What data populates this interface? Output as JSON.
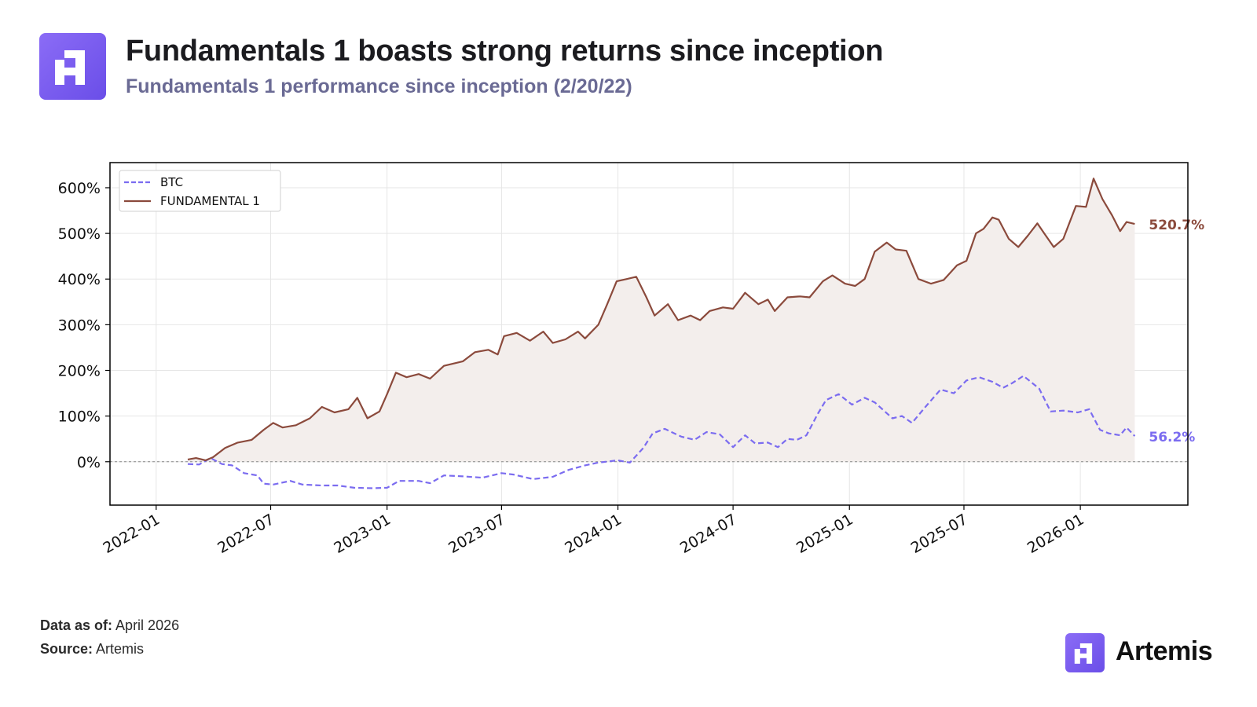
{
  "header": {
    "title": "Fundamentals 1 boasts strong returns since inception",
    "subtitle": "Fundamentals 1 performance since inception (2/20/22)"
  },
  "footer": {
    "data_as_of_label": "Data as of:",
    "data_as_of_value": "April 2026",
    "source_label": "Source:",
    "source_value": "Artemis",
    "brand": "Artemis"
  },
  "chart_data": {
    "type": "line",
    "title": "",
    "xlabel": "",
    "ylabel": "",
    "x_range": [
      "2021-10-20",
      "2026-06-20"
    ],
    "ylim": [
      -95,
      655
    ],
    "y_ticks": [
      0,
      100,
      200,
      300,
      400,
      500,
      600
    ],
    "y_tick_labels": [
      "0%",
      "100%",
      "200%",
      "300%",
      "400%",
      "500%",
      "600%"
    ],
    "x_ticks": [
      "2022-01-01",
      "2022-07-01",
      "2023-01-01",
      "2023-07-01",
      "2024-01-01",
      "2024-07-01",
      "2025-01-01",
      "2025-07-01",
      "2026-01-01"
    ],
    "x_tick_labels": [
      "2022-01",
      "2022-07",
      "2023-01",
      "2023-07",
      "2024-01",
      "2024-07",
      "2025-01",
      "2025-07",
      "2026-01"
    ],
    "grid": true,
    "legend_position": "top-left",
    "zero_line": true,
    "series": [
      {
        "name": "BTC",
        "color": "#7b6cf0",
        "style": "dashed",
        "end_label": "56.2%",
        "points": [
          [
            "2022-02-20",
            -5
          ],
          [
            "2022-03-10",
            -6
          ],
          [
            "2022-03-28",
            8
          ],
          [
            "2022-04-15",
            -5
          ],
          [
            "2022-05-01",
            -8
          ],
          [
            "2022-05-20",
            -25
          ],
          [
            "2022-06-10",
            -30
          ],
          [
            "2022-06-20",
            -48
          ],
          [
            "2022-07-05",
            -50
          ],
          [
            "2022-08-01",
            -42
          ],
          [
            "2022-08-20",
            -50
          ],
          [
            "2022-09-20",
            -52
          ],
          [
            "2022-10-15",
            -52
          ],
          [
            "2022-11-10",
            -57
          ],
          [
            "2022-12-10",
            -58
          ],
          [
            "2023-01-01",
            -57
          ],
          [
            "2023-01-20",
            -42
          ],
          [
            "2023-02-20",
            -42
          ],
          [
            "2023-03-10",
            -47
          ],
          [
            "2023-04-01",
            -30
          ],
          [
            "2023-05-01",
            -32
          ],
          [
            "2023-06-01",
            -35
          ],
          [
            "2023-07-01",
            -25
          ],
          [
            "2023-07-20",
            -28
          ],
          [
            "2023-08-20",
            -38
          ],
          [
            "2023-09-20",
            -33
          ],
          [
            "2023-10-15",
            -18
          ],
          [
            "2023-11-10",
            -8
          ],
          [
            "2023-12-01",
            -2
          ],
          [
            "2024-01-01",
            3
          ],
          [
            "2024-01-20",
            -2
          ],
          [
            "2024-02-10",
            30
          ],
          [
            "2024-02-25",
            62
          ],
          [
            "2024-03-15",
            72
          ],
          [
            "2024-04-10",
            55
          ],
          [
            "2024-05-01",
            48
          ],
          [
            "2024-05-20",
            65
          ],
          [
            "2024-06-10",
            60
          ],
          [
            "2024-07-01",
            32
          ],
          [
            "2024-07-20",
            58
          ],
          [
            "2024-08-05",
            40
          ],
          [
            "2024-08-25",
            42
          ],
          [
            "2024-09-10",
            32
          ],
          [
            "2024-09-25",
            50
          ],
          [
            "2024-10-10",
            48
          ],
          [
            "2024-10-25",
            58
          ],
          [
            "2024-11-12",
            105
          ],
          [
            "2024-11-25",
            135
          ],
          [
            "2024-12-15",
            148
          ],
          [
            "2025-01-05",
            125
          ],
          [
            "2025-01-25",
            140
          ],
          [
            "2025-02-10",
            130
          ],
          [
            "2025-03-10",
            95
          ],
          [
            "2025-03-25",
            100
          ],
          [
            "2025-04-10",
            85
          ],
          [
            "2025-05-01",
            120
          ],
          [
            "2025-05-25",
            158
          ],
          [
            "2025-06-15",
            150
          ],
          [
            "2025-07-05",
            178
          ],
          [
            "2025-07-25",
            185
          ],
          [
            "2025-08-15",
            175
          ],
          [
            "2025-09-01",
            162
          ],
          [
            "2025-09-15",
            172
          ],
          [
            "2025-10-03",
            188
          ],
          [
            "2025-10-12",
            178
          ],
          [
            "2025-10-28",
            160
          ],
          [
            "2025-11-15",
            110
          ],
          [
            "2025-12-05",
            112
          ],
          [
            "2025-12-28",
            108
          ],
          [
            "2026-01-15",
            115
          ],
          [
            "2026-02-01",
            70
          ],
          [
            "2026-02-15",
            62
          ],
          [
            "2026-03-05",
            58
          ],
          [
            "2026-03-15",
            75
          ],
          [
            "2026-03-28",
            56.2
          ]
        ]
      },
      {
        "name": "FUNDAMENTAL 1",
        "color": "#8b4a3c",
        "style": "solid",
        "fill": "#f3eeec",
        "end_label": "520.7%",
        "points": [
          [
            "2022-02-20",
            5
          ],
          [
            "2022-03-05",
            8
          ],
          [
            "2022-03-20",
            3
          ],
          [
            "2022-04-01",
            10
          ],
          [
            "2022-04-20",
            30
          ],
          [
            "2022-05-10",
            42
          ],
          [
            "2022-06-01",
            48
          ],
          [
            "2022-06-20",
            70
          ],
          [
            "2022-07-05",
            85
          ],
          [
            "2022-07-20",
            75
          ],
          [
            "2022-08-10",
            80
          ],
          [
            "2022-09-01",
            95
          ],
          [
            "2022-09-20",
            120
          ],
          [
            "2022-10-10",
            108
          ],
          [
            "2022-11-01",
            115
          ],
          [
            "2022-11-15",
            140
          ],
          [
            "2022-12-01",
            95
          ],
          [
            "2022-12-20",
            110
          ],
          [
            "2023-01-01",
            148
          ],
          [
            "2023-01-15",
            195
          ],
          [
            "2023-02-01",
            185
          ],
          [
            "2023-02-20",
            192
          ],
          [
            "2023-03-10",
            182
          ],
          [
            "2023-04-01",
            210
          ],
          [
            "2023-05-01",
            220
          ],
          [
            "2023-05-20",
            240
          ],
          [
            "2023-06-10",
            245
          ],
          [
            "2023-06-25",
            235
          ],
          [
            "2023-07-05",
            275
          ],
          [
            "2023-07-25",
            282
          ],
          [
            "2023-08-15",
            265
          ],
          [
            "2023-09-05",
            285
          ],
          [
            "2023-09-20",
            260
          ],
          [
            "2023-10-10",
            268
          ],
          [
            "2023-10-30",
            285
          ],
          [
            "2023-11-10",
            270
          ],
          [
            "2023-12-01",
            300
          ],
          [
            "2023-12-15",
            345
          ],
          [
            "2023-12-30",
            395
          ],
          [
            "2024-01-15",
            400
          ],
          [
            "2024-01-30",
            405
          ],
          [
            "2024-02-15",
            360
          ],
          [
            "2024-02-28",
            320
          ],
          [
            "2024-03-20",
            345
          ],
          [
            "2024-04-05",
            310
          ],
          [
            "2024-04-25",
            320
          ],
          [
            "2024-05-10",
            310
          ],
          [
            "2024-05-25",
            330
          ],
          [
            "2024-06-15",
            338
          ],
          [
            "2024-07-01",
            335
          ],
          [
            "2024-07-20",
            370
          ],
          [
            "2024-08-10",
            345
          ],
          [
            "2024-08-25",
            355
          ],
          [
            "2024-09-05",
            330
          ],
          [
            "2024-09-25",
            360
          ],
          [
            "2024-10-15",
            362
          ],
          [
            "2024-10-30",
            360
          ],
          [
            "2024-11-20",
            395
          ],
          [
            "2024-12-05",
            408
          ],
          [
            "2024-12-25",
            390
          ],
          [
            "2025-01-10",
            385
          ],
          [
            "2025-01-25",
            400
          ],
          [
            "2025-02-10",
            460
          ],
          [
            "2025-03-01",
            480
          ],
          [
            "2025-03-15",
            465
          ],
          [
            "2025-04-01",
            462
          ],
          [
            "2025-04-20",
            400
          ],
          [
            "2025-05-10",
            390
          ],
          [
            "2025-05-30",
            398
          ],
          [
            "2025-06-20",
            430
          ],
          [
            "2025-07-05",
            440
          ],
          [
            "2025-07-20",
            500
          ],
          [
            "2025-08-01",
            510
          ],
          [
            "2025-08-15",
            535
          ],
          [
            "2025-08-25",
            530
          ],
          [
            "2025-09-10",
            488
          ],
          [
            "2025-09-25",
            470
          ],
          [
            "2025-10-10",
            495
          ],
          [
            "2025-10-25",
            522
          ],
          [
            "2025-11-05",
            500
          ],
          [
            "2025-11-20",
            470
          ],
          [
            "2025-12-05",
            488
          ],
          [
            "2025-12-25",
            560
          ],
          [
            "2026-01-10",
            558
          ],
          [
            "2026-01-22",
            620
          ],
          [
            "2026-02-05",
            575
          ],
          [
            "2026-02-20",
            540
          ],
          [
            "2026-03-05",
            505
          ],
          [
            "2026-03-15",
            525
          ],
          [
            "2026-03-28",
            520.7
          ]
        ]
      }
    ]
  }
}
